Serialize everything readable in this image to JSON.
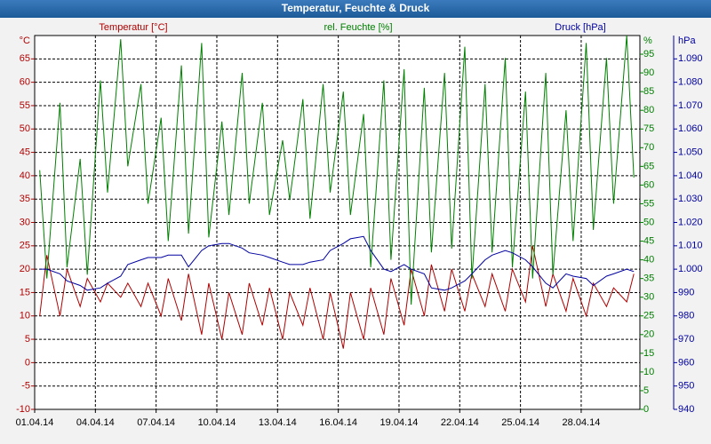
{
  "chart_data": {
    "type": "line",
    "title": "Temperatur, Feuchte & Druck",
    "ylabel": "Temperatur [°C]",
    "y2label": "rel. Feuchte [%]",
    "y3label": "Druck [hPa]",
    "yunit": "°C",
    "y2unit": "%",
    "y3unit": "hPa",
    "grid": true,
    "xlim": [
      0,
      29.9
    ],
    "xticks": [
      {
        "value": 0,
        "label": "01.04.14"
      },
      {
        "value": 3,
        "label": "04.04.14"
      },
      {
        "value": 6,
        "label": "07.04.14"
      },
      {
        "value": 9,
        "label": "10.04.14"
      },
      {
        "value": 12,
        "label": "13.04.14"
      },
      {
        "value": 15,
        "label": "16.04.14"
      },
      {
        "value": 18,
        "label": "19.04.14"
      },
      {
        "value": 21,
        "label": "22.04.14"
      },
      {
        "value": 24,
        "label": "25.04.14"
      },
      {
        "value": 27,
        "label": "28.04.14"
      }
    ],
    "ylim": [
      -10,
      70
    ],
    "yticks": [
      -10,
      -5,
      0,
      5,
      10,
      15,
      20,
      25,
      30,
      35,
      40,
      45,
      50,
      55,
      60,
      65
    ],
    "y2lim": [
      0,
      100
    ],
    "y2ticks": [
      0,
      5,
      10,
      15,
      20,
      25,
      30,
      35,
      40,
      45,
      50,
      55,
      60,
      65,
      70,
      75,
      80,
      85,
      90,
      95
    ],
    "y3lim": [
      940,
      1100
    ],
    "y3ticks": [
      940,
      950,
      960,
      970,
      980,
      990,
      {
        "value": 1000,
        "label": "1.000"
      },
      {
        "value": 1010,
        "label": "1.010"
      },
      {
        "value": 1020,
        "label": "1.020"
      },
      {
        "value": 1030,
        "label": "1.030"
      },
      {
        "value": 1040,
        "label": "1.040"
      },
      {
        "value": 1050,
        "label": "1.050"
      },
      {
        "value": 1060,
        "label": "1.060"
      },
      {
        "value": 1070,
        "label": "1.070"
      },
      {
        "value": 1080,
        "label": "1.080"
      },
      {
        "value": 1090,
        "label": "1.090"
      }
    ],
    "x": [
      0.25,
      0.6,
      1.25,
      1.6,
      2.25,
      2.6,
      3.25,
      3.6,
      4.25,
      4.6,
      5.25,
      5.6,
      6.25,
      6.6,
      7.25,
      7.6,
      8.25,
      8.6,
      9.25,
      9.6,
      10.25,
      10.6,
      11.25,
      11.6,
      12.25,
      12.6,
      13.25,
      13.6,
      14.25,
      14.6,
      15.25,
      15.6,
      16.25,
      16.6,
      17.25,
      17.6,
      18.25,
      18.6,
      19.25,
      19.6,
      20.25,
      20.6,
      21.25,
      21.6,
      22.25,
      22.6,
      23.25,
      23.6,
      24.25,
      24.6,
      25.25,
      25.6,
      26.25,
      26.6,
      27.25,
      27.6,
      28.25,
      28.6,
      29.25,
      29.6
    ],
    "series": [
      {
        "name": "Temperatur",
        "color": "#b00000",
        "axis": "y",
        "values": [
          10,
          23,
          10,
          20,
          12,
          18,
          13,
          17,
          14,
          17,
          12,
          17,
          10,
          18,
          9,
          19,
          6,
          17,
          5,
          15,
          6,
          17,
          8,
          16,
          5,
          15,
          8,
          16,
          5,
          15,
          3,
          15,
          5,
          16,
          6,
          18,
          8,
          20,
          10,
          21,
          11,
          20,
          11,
          19,
          12,
          19,
          11,
          20,
          13,
          25,
          12,
          19,
          11,
          18,
          10,
          17,
          12,
          16,
          13,
          19
        ]
      },
      {
        "name": "rel. Feuchte",
        "color": "#008000",
        "axis": "y2",
        "values": [
          64,
          35,
          82,
          38,
          67,
          36,
          88,
          58,
          99,
          65,
          87,
          55,
          78,
          45,
          92,
          47,
          98,
          46,
          77,
          52,
          90,
          55,
          82,
          52,
          72,
          56,
          83,
          51,
          87,
          58,
          85,
          52,
          79,
          38,
          88,
          40,
          91,
          28,
          86,
          42,
          90,
          43,
          97,
          35,
          87,
          42,
          94,
          38,
          85,
          35,
          90,
          36,
          80,
          45,
          98,
          48,
          94,
          55,
          100,
          62
        ]
      },
      {
        "name": "Druck",
        "color": "#0000a0",
        "axis": "y3",
        "values": [
          1000,
          1000,
          998,
          995,
          993,
          991,
          992,
          994,
          997,
          1002,
          1004,
          1005,
          1005,
          1006,
          1006,
          1001,
          1008,
          1010,
          1011,
          1011,
          1009,
          1007,
          1006,
          1005,
          1003,
          1002,
          1002,
          1003,
          1004,
          1008,
          1011,
          1013,
          1014,
          1008,
          1000,
          999,
          1002,
          1000,
          998,
          992,
          991,
          992,
          995,
          998,
          1004,
          1006,
          1008,
          1007,
          1004,
          1001,
          994,
          992,
          998,
          997,
          996,
          993,
          997,
          998,
          1000,
          999
        ]
      }
    ]
  }
}
